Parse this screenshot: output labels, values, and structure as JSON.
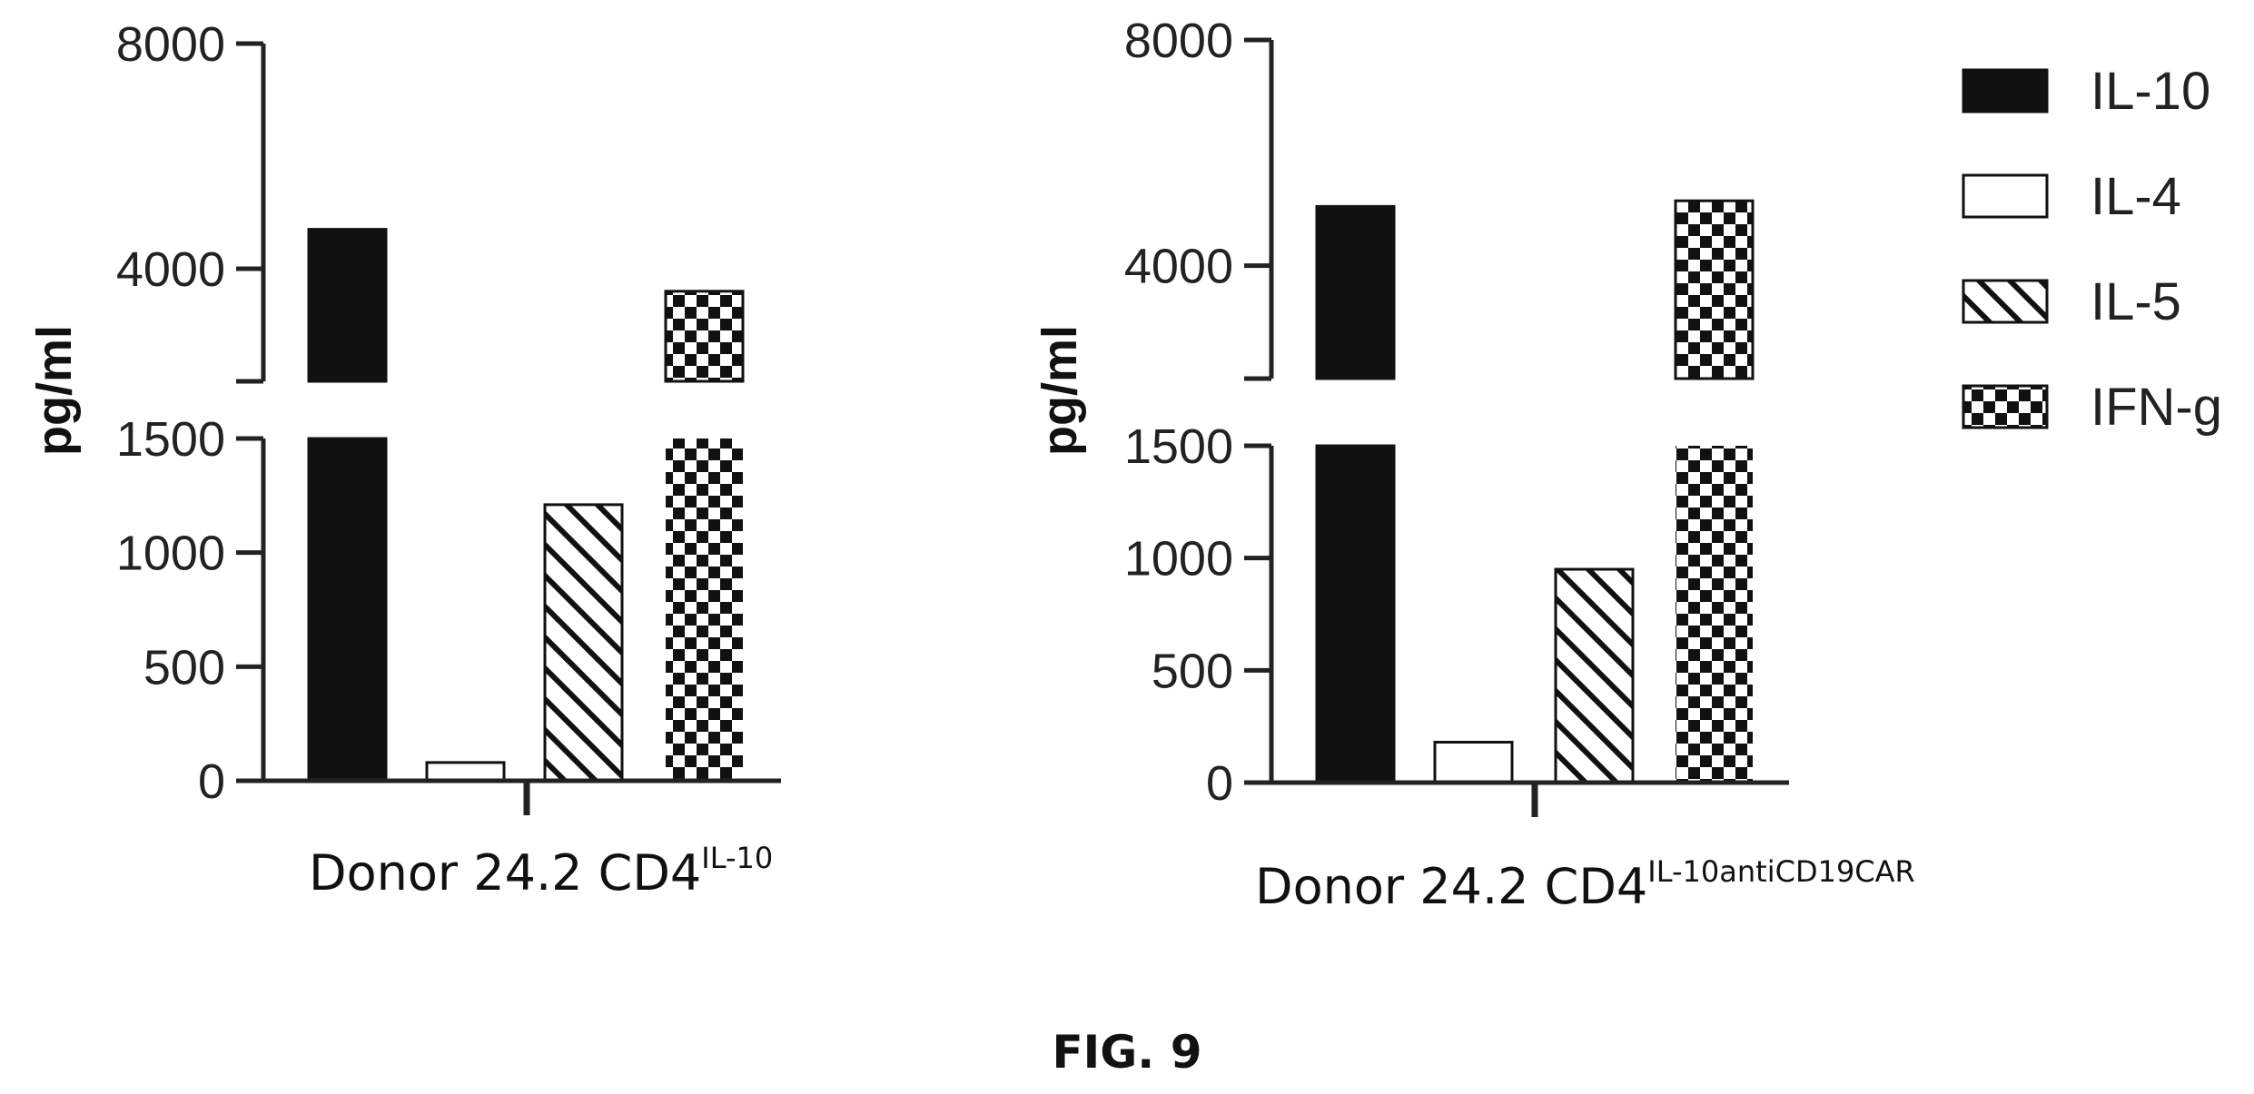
{
  "figure_caption": "FIG. 9",
  "legend": [
    {
      "label": "IL-10",
      "pattern": "solid"
    },
    {
      "label": "IL-4",
      "pattern": "open"
    },
    {
      "label": "IL-5",
      "pattern": "hatch"
    },
    {
      "label": "IFN-g",
      "pattern": "checker"
    }
  ],
  "colors": {
    "ink": "#111111",
    "background": "#ffffff"
  },
  "chart_data": [
    {
      "type": "bar",
      "ylabel": "pg/ml",
      "xlabel": "Donor 24.2 CD4",
      "xlabel_superscript": "IL-10",
      "categories": [
        "IL-10",
        "IL-4",
        "IL-5",
        "IFN-g"
      ],
      "values": [
        4700,
        80,
        1210,
        3600
      ],
      "axis_break": {
        "lower_range": [
          0,
          1500
        ],
        "upper_range": [
          2000,
          8000
        ]
      },
      "y_ticks_lower": [
        0,
        500,
        1000,
        1500
      ],
      "y_ticks_upper": [
        4000,
        8000
      ],
      "y_tick_labels_lower": [
        "0",
        "500",
        "1000",
        "1500"
      ],
      "y_tick_labels_upper": [
        "4000",
        "8000"
      ],
      "grid": false
    },
    {
      "type": "bar",
      "ylabel": "pg/ml",
      "xlabel": "Donor 24.2 CD4",
      "xlabel_superscript": "IL-10antiCD19CAR",
      "categories": [
        "IL-10",
        "IL-4",
        "IL-5",
        "IFN-g"
      ],
      "values": [
        5050,
        180,
        950,
        5150
      ],
      "axis_break": {
        "lower_range": [
          0,
          1500
        ],
        "upper_range": [
          2000,
          8000
        ]
      },
      "y_ticks_lower": [
        0,
        500,
        1000,
        1500
      ],
      "y_ticks_upper": [
        4000,
        8000
      ],
      "y_tick_labels_lower": [
        "0",
        "500",
        "1000",
        "1500"
      ],
      "y_tick_labels_upper": [
        "4000",
        "8000"
      ],
      "grid": false
    }
  ]
}
